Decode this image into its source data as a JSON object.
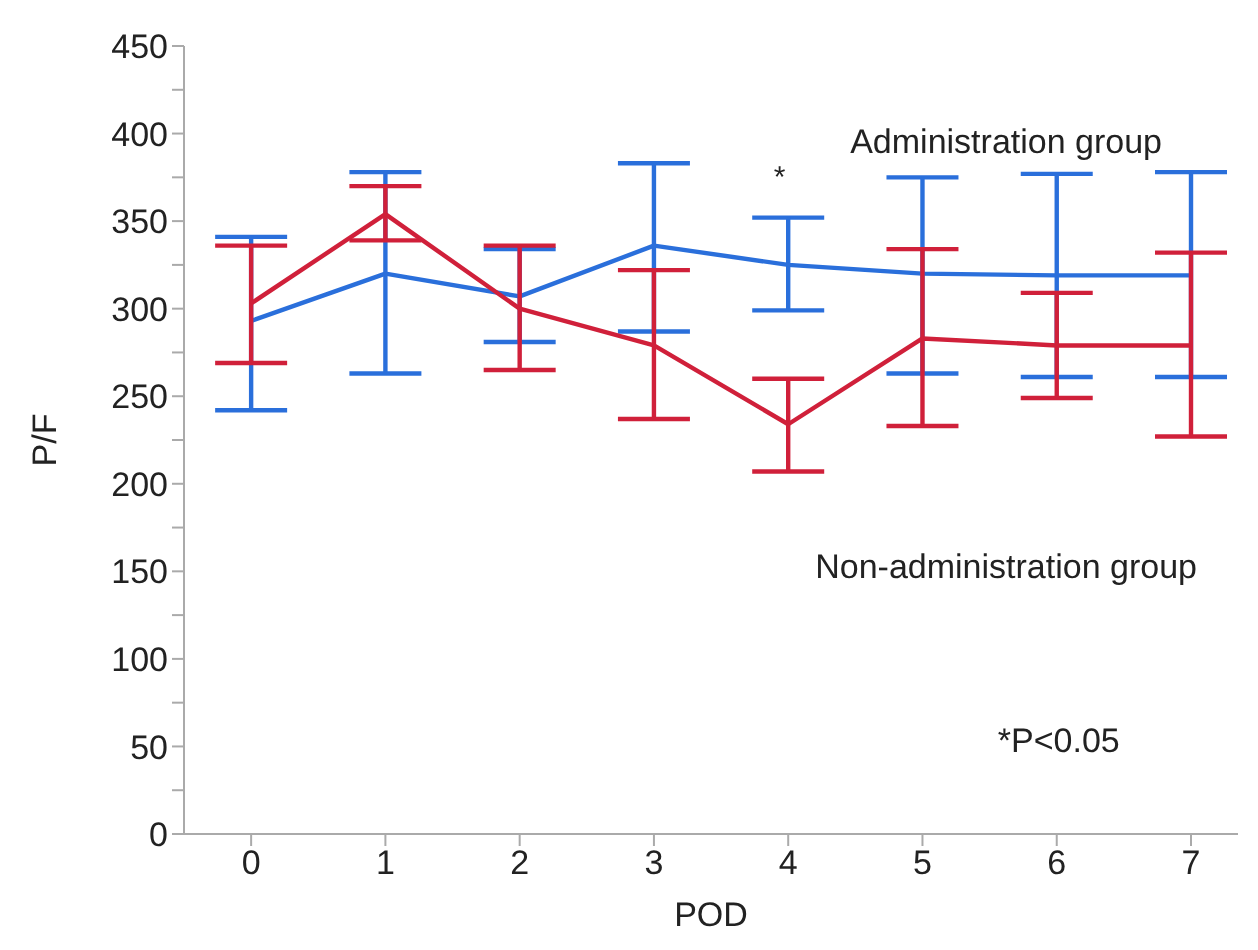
{
  "chart_data": {
    "type": "line",
    "xlabel": "POD",
    "ylabel": "P/F",
    "x": [
      0,
      1,
      2,
      3,
      4,
      5,
      6,
      7
    ],
    "xlim": [
      -0.5,
      7.35
    ],
    "xticks": [
      0,
      1,
      2,
      3,
      4,
      5,
      6,
      7
    ],
    "ylim": [
      0,
      450
    ],
    "yticks": [
      0,
      {
        "value": 25,
        "label": null
      },
      50,
      {
        "value": 75,
        "label": null
      },
      100,
      {
        "value": 125,
        "label": null
      },
      150,
      {
        "value": 175,
        "label": null
      },
      200,
      {
        "value": 225,
        "label": null
      },
      250,
      {
        "value": 275,
        "label": null
      },
      300,
      {
        "value": 325,
        "label": null
      },
      350,
      {
        "value": 375,
        "label": null
      },
      400,
      {
        "value": 425,
        "label": null
      },
      450
    ],
    "grid": false,
    "legend": false,
    "marker": "none",
    "line_style": "solid",
    "series": [
      {
        "color": "#2a6fdb",
        "values": [
          293,
          320,
          307,
          336,
          325,
          320,
          319,
          319
        ],
        "errors": [
          [
            242,
            341
          ],
          [
            263,
            378
          ],
          [
            281,
            334
          ],
          [
            287,
            383
          ],
          [
            299,
            352
          ],
          [
            263,
            375
          ],
          [
            261,
            377
          ],
          [
            261,
            378
          ]
        ]
      },
      {
        "color": "#d0203a",
        "values": [
          303,
          354,
          300,
          279,
          234,
          283,
          279,
          279
        ],
        "errors": [
          [
            269,
            336
          ],
          [
            339,
            370
          ],
          [
            265,
            336
          ],
          [
            237,
            322
          ],
          [
            207,
            260
          ],
          [
            233,
            334
          ],
          [
            249,
            309
          ],
          [
            227,
            332
          ]
        ]
      }
    ],
    "annotations": [
      "Administration group",
      "*",
      "Non-administration group",
      "*P<0.05"
    ]
  }
}
